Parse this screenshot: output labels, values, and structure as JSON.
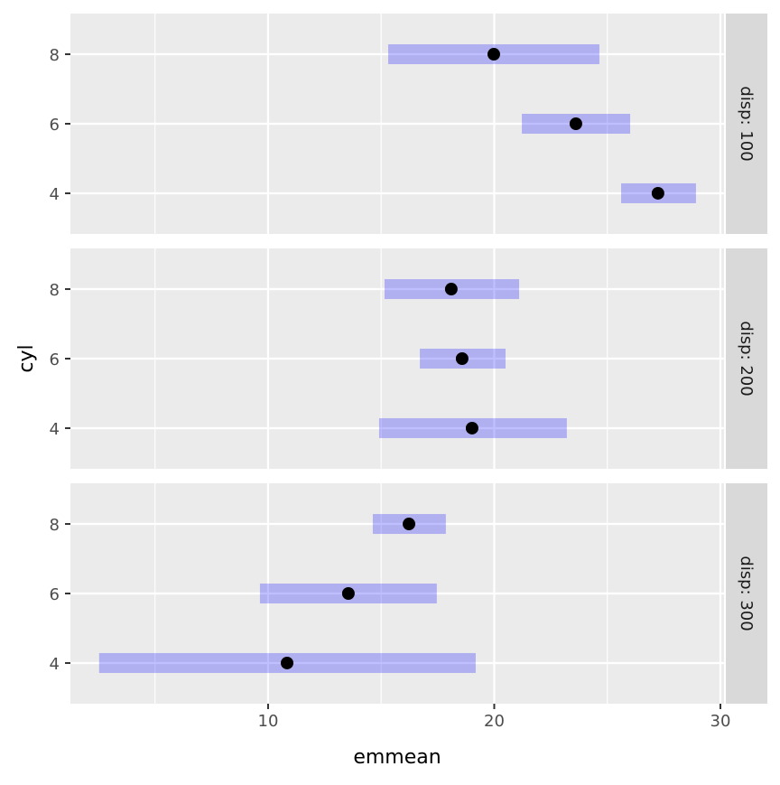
{
  "chart_data": {
    "type": "interval",
    "xlabel": "emmean",
    "ylabel": "cyl",
    "xlim": [
      1.26,
      30.16
    ],
    "x_ticks": [
      10,
      20,
      30
    ],
    "y_categories": [
      "4",
      "6",
      "8"
    ],
    "grid": true,
    "bar_color": "#0000ff",
    "bar_alpha": 0.25,
    "point_color": "#000000",
    "panel_background": "#ebebeb",
    "strip_background": "#d9d9d9",
    "panels": [
      {
        "strip": "disp: 100",
        "rows": [
          {
            "cyl": "8",
            "emmean": 19.98,
            "lower": 15.31,
            "upper": 24.65
          },
          {
            "cyl": "6",
            "emmean": 23.61,
            "lower": 21.22,
            "upper": 26.01
          },
          {
            "cyl": "4",
            "emmean": 27.24,
            "lower": 25.61,
            "upper": 28.92
          }
        ]
      },
      {
        "strip": "disp: 200",
        "rows": [
          {
            "cyl": "8",
            "emmean": 18.1,
            "lower": 15.15,
            "upper": 21.1
          },
          {
            "cyl": "6",
            "emmean": 18.58,
            "lower": 16.71,
            "upper": 20.5
          },
          {
            "cyl": "4",
            "emmean": 19.02,
            "lower": 14.91,
            "upper": 23.21
          }
        ]
      },
      {
        "strip": "disp: 300",
        "rows": [
          {
            "cyl": "8",
            "emmean": 16.23,
            "lower": 14.63,
            "upper": 17.86
          },
          {
            "cyl": "6",
            "emmean": 13.55,
            "lower": 9.64,
            "upper": 17.46
          },
          {
            "cyl": "4",
            "emmean": 10.84,
            "lower": 2.53,
            "upper": 19.18
          }
        ]
      }
    ]
  }
}
